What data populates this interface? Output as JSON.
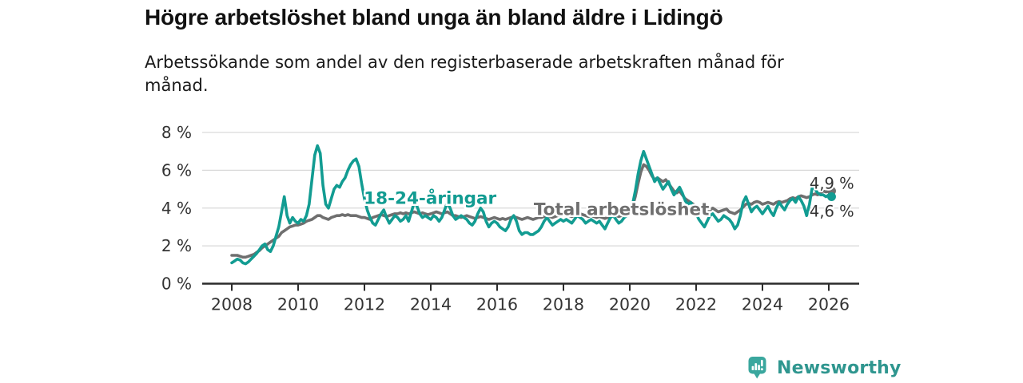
{
  "chart_data": {
    "type": "line",
    "title": "Högre arbetslöshet bland unga än bland äldre i Lidingö",
    "subtitle": "Arbetssökande som andel av den registerbaserade arbetskraften månad för månad.",
    "x_unit": "month",
    "x_start": "2008-01",
    "x_end": "2026-02",
    "start_year": 2008,
    "points_per_year": 12,
    "x_tick_years": [
      2008,
      2010,
      2012,
      2014,
      2016,
      2018,
      2020,
      2022,
      2024,
      2026
    ],
    "ylim": [
      0,
      8
    ],
    "y_ticks": [
      {
        "value": 0,
        "label": "0 %"
      },
      {
        "value": 2,
        "label": "2 %"
      },
      {
        "value": 4,
        "label": "4 %"
      },
      {
        "value": 6,
        "label": "6 %"
      },
      {
        "value": 8,
        "label": "8 %"
      }
    ],
    "grid": "horizontal",
    "legend": "inline-labels",
    "colors": {
      "axis": "#2b2b2b",
      "grid": "#d9d9d9",
      "tick_text": "#333333",
      "value_label_text": "#333333"
    },
    "series": [
      {
        "id": "total",
        "name": "Total arbetslöshet",
        "color": "#6f6f6f",
        "end_label": "4,9 %",
        "label_at": {
          "x": 2019.75,
          "y": 3.94
        },
        "end_label_at": {
          "x": 2025.42,
          "y": 5.28
        },
        "values": [
          1.5,
          1.5,
          1.5,
          1.45,
          1.4,
          1.4,
          1.45,
          1.5,
          1.55,
          1.65,
          1.75,
          1.9,
          2.0,
          2.1,
          2.2,
          2.3,
          2.4,
          2.5,
          2.7,
          2.8,
          2.9,
          3.0,
          3.05,
          3.1,
          3.1,
          3.15,
          3.2,
          3.3,
          3.35,
          3.4,
          3.5,
          3.6,
          3.6,
          3.5,
          3.45,
          3.4,
          3.5,
          3.55,
          3.6,
          3.6,
          3.65,
          3.6,
          3.65,
          3.6,
          3.6,
          3.6,
          3.55,
          3.5,
          3.5,
          3.45,
          3.4,
          3.5,
          3.55,
          3.6,
          3.65,
          3.6,
          3.55,
          3.6,
          3.65,
          3.7,
          3.7,
          3.75,
          3.7,
          3.75,
          3.7,
          3.75,
          3.8,
          3.75,
          3.7,
          3.75,
          3.7,
          3.65,
          3.7,
          3.75,
          3.8,
          3.75,
          3.7,
          3.75,
          3.8,
          3.7,
          3.6,
          3.6,
          3.55,
          3.5,
          3.55,
          3.6,
          3.55,
          3.5,
          3.45,
          3.5,
          3.55,
          3.5,
          3.45,
          3.4,
          3.45,
          3.5,
          3.45,
          3.4,
          3.45,
          3.4,
          3.45,
          3.5,
          3.55,
          3.5,
          3.45,
          3.4,
          3.45,
          3.5,
          3.45,
          3.4,
          3.45,
          3.5,
          3.5,
          3.55,
          3.6,
          3.55,
          3.5,
          3.55,
          3.6,
          3.6,
          3.6,
          3.65,
          3.6,
          3.55,
          3.6,
          3.65,
          3.7,
          3.65,
          3.6,
          3.55,
          3.6,
          3.55,
          3.5,
          3.55,
          3.5,
          3.45,
          3.5,
          3.6,
          3.65,
          3.6,
          3.55,
          3.6,
          3.7,
          3.8,
          3.9,
          4.1,
          4.6,
          5.3,
          5.9,
          6.3,
          6.2,
          6.0,
          5.7,
          5.5,
          5.6,
          5.5,
          5.4,
          5.5,
          5.3,
          5.1,
          4.9,
          4.8,
          4.9,
          4.7,
          4.5,
          4.4,
          4.3,
          4.2,
          4.1,
          4.0,
          3.9,
          3.8,
          3.8,
          3.9,
          4.0,
          3.9,
          3.8,
          3.85,
          3.9,
          3.95,
          3.8,
          3.75,
          3.7,
          3.8,
          3.9,
          4.05,
          4.2,
          4.25,
          4.2,
          4.3,
          4.35,
          4.3,
          4.2,
          4.25,
          4.3,
          4.25,
          4.2,
          4.3,
          4.35,
          4.3,
          4.35,
          4.4,
          4.5,
          4.55,
          4.5,
          4.6,
          4.65,
          4.6,
          4.55,
          4.6,
          4.7,
          4.75,
          4.7,
          4.8,
          4.9,
          4.85,
          4.9,
          4.9
        ]
      },
      {
        "id": "young",
        "name": "18-24-åringar",
        "color": "#129c92",
        "end_label": "4,6 %",
        "label_at": {
          "x": 2013.98,
          "y": 4.53
        },
        "end_label_at": {
          "x": 2025.42,
          "y": 3.8
        },
        "values": [
          1.1,
          1.2,
          1.3,
          1.25,
          1.1,
          1.05,
          1.15,
          1.3,
          1.45,
          1.6,
          1.8,
          2.0,
          2.1,
          1.8,
          1.7,
          2.0,
          2.5,
          3.0,
          3.8,
          4.6,
          3.6,
          3.2,
          3.5,
          3.3,
          3.2,
          3.4,
          3.3,
          3.6,
          4.2,
          5.5,
          6.8,
          7.3,
          6.9,
          5.2,
          4.2,
          4.0,
          4.5,
          5.0,
          5.2,
          5.1,
          5.4,
          5.6,
          6.0,
          6.3,
          6.5,
          6.6,
          6.2,
          5.3,
          4.5,
          3.9,
          3.5,
          3.2,
          3.1,
          3.4,
          3.7,
          3.9,
          3.5,
          3.2,
          3.4,
          3.6,
          3.5,
          3.3,
          3.4,
          3.6,
          3.3,
          3.8,
          4.3,
          4.1,
          3.7,
          3.5,
          3.6,
          3.5,
          3.4,
          3.6,
          3.5,
          3.3,
          3.5,
          3.9,
          4.3,
          4.0,
          3.6,
          3.4,
          3.5,
          3.6,
          3.5,
          3.4,
          3.2,
          3.1,
          3.3,
          3.7,
          4.0,
          3.8,
          3.3,
          3.0,
          3.2,
          3.3,
          3.2,
          3.0,
          2.9,
          2.8,
          3.0,
          3.4,
          3.6,
          3.3,
          2.8,
          2.6,
          2.7,
          2.7,
          2.6,
          2.6,
          2.7,
          2.8,
          3.0,
          3.3,
          3.5,
          3.3,
          3.1,
          3.2,
          3.3,
          3.4,
          3.3,
          3.4,
          3.3,
          3.2,
          3.4,
          3.6,
          3.5,
          3.4,
          3.2,
          3.3,
          3.4,
          3.3,
          3.2,
          3.3,
          3.1,
          2.9,
          3.2,
          3.5,
          3.6,
          3.4,
          3.2,
          3.3,
          3.5,
          3.6,
          3.8,
          4.2,
          4.9,
          5.8,
          6.5,
          7.0,
          6.6,
          6.2,
          5.8,
          5.4,
          5.6,
          5.3,
          5.0,
          5.2,
          5.4,
          5.0,
          4.7,
          4.9,
          5.1,
          4.8,
          4.4,
          4.2,
          4.3,
          4.1,
          3.7,
          3.4,
          3.2,
          3.0,
          3.3,
          3.6,
          3.7,
          3.5,
          3.3,
          3.4,
          3.6,
          3.5,
          3.4,
          3.2,
          2.9,
          3.1,
          3.6,
          4.3,
          4.6,
          4.2,
          3.8,
          4.0,
          4.1,
          3.9,
          3.7,
          3.9,
          4.1,
          3.8,
          3.6,
          4.0,
          4.3,
          4.1,
          3.9,
          4.2,
          4.4,
          4.5,
          4.3,
          4.6,
          4.4,
          4.1,
          3.6,
          4.2,
          5.1,
          5.0,
          4.8,
          4.7,
          4.7,
          4.6,
          4.7,
          4.6
        ]
      }
    ]
  },
  "footer": {
    "brand": "Newsworthy",
    "brand_color": "#2f968f",
    "logo_icon": "bar-chart-speech-bubble",
    "logo_icon_color": "#3aa79e"
  }
}
